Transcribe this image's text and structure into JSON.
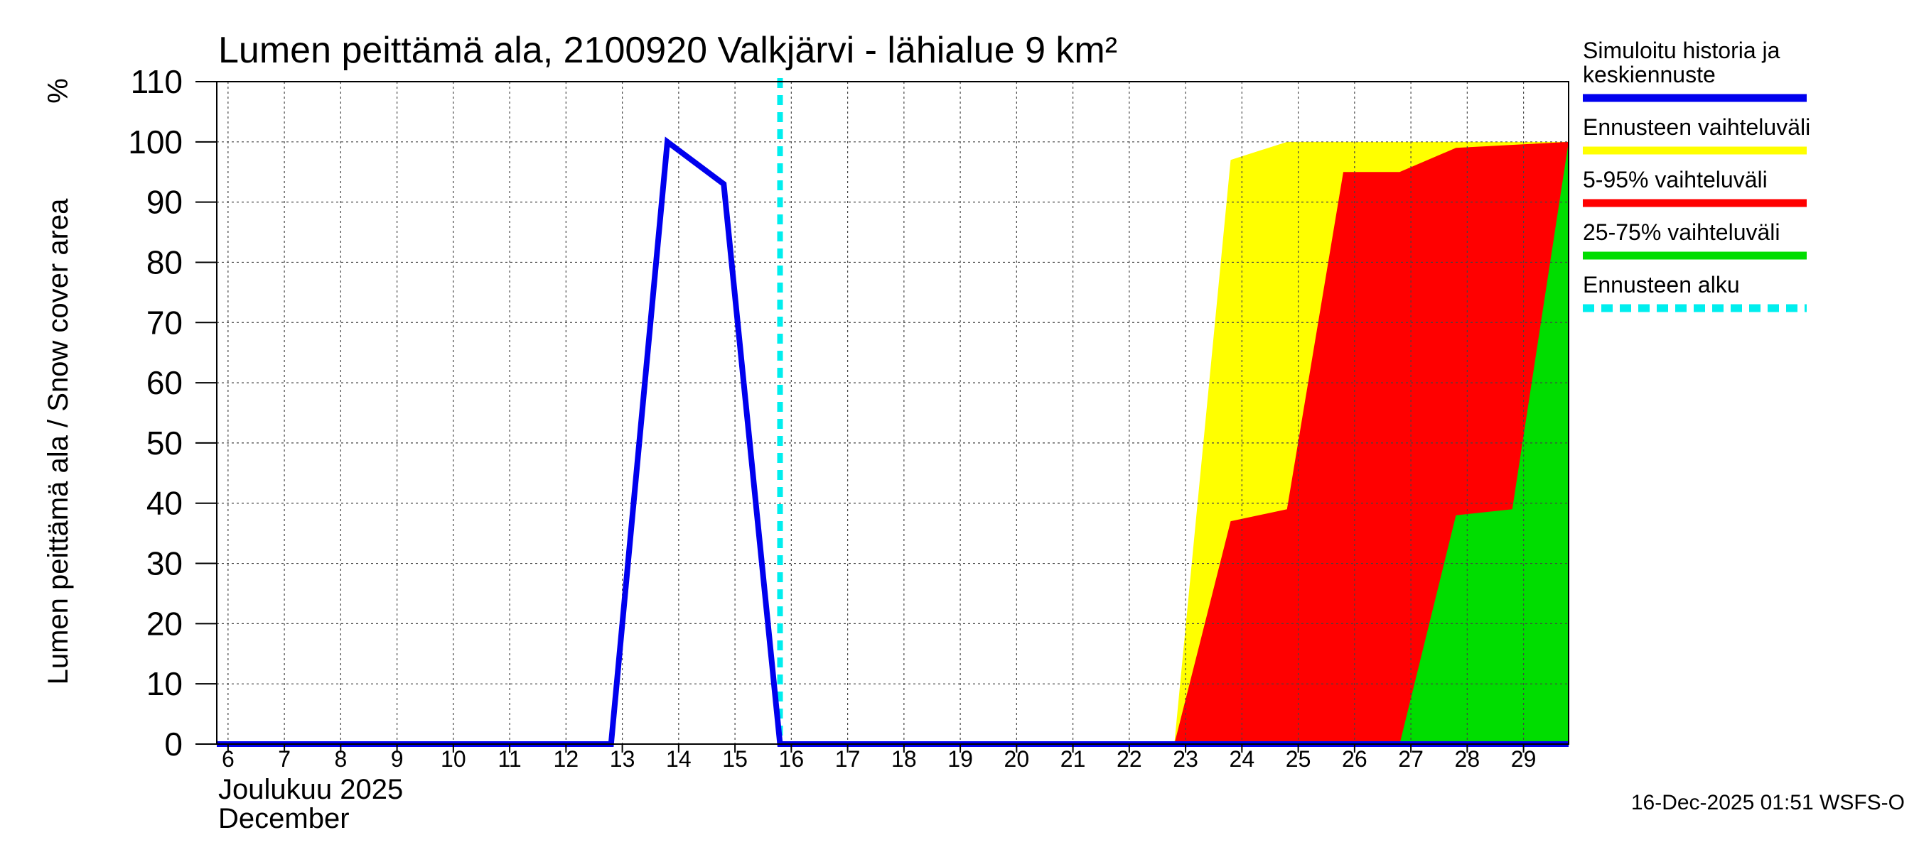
{
  "chart_data": {
    "type": "area",
    "title": "Lumen peittämä ala, 2100920 Valkjärvi - lähialue 9 km²",
    "ylabel": "Lumen peittämä ala / Snow cover area",
    "yunit": "%",
    "ylim": [
      0,
      110
    ],
    "yticks": [
      0,
      10,
      20,
      30,
      40,
      50,
      60,
      70,
      80,
      90,
      100,
      110
    ],
    "xlim": [
      5.8,
      29.8
    ],
    "xticks": [
      6,
      7,
      8,
      9,
      10,
      11,
      12,
      13,
      14,
      15,
      16,
      17,
      18,
      19,
      20,
      21,
      22,
      23,
      24,
      25,
      26,
      27,
      28,
      29
    ],
    "xtick_labels": [
      "6",
      "7",
      "8",
      "9",
      "10",
      "11",
      "12",
      "13",
      "14",
      "15",
      "16",
      "17",
      "18",
      "19",
      "20",
      "21",
      "22",
      "23",
      "24",
      "25",
      "26",
      "27",
      "28",
      "29"
    ],
    "x_month_label_fi": "Joulukuu  2025",
    "x_month_label_en": "December",
    "grid": true,
    "legend_position": "right",
    "forecast_start": 15.8,
    "series": [
      {
        "name": "Ennusteen vaihteluväli",
        "color": "#ffff00",
        "kind": "band",
        "points": [
          [
            15.8,
            0
          ],
          [
            22.8,
            0
          ],
          [
            23.8,
            97
          ],
          [
            24.8,
            100
          ],
          [
            29.8,
            100
          ]
        ]
      },
      {
        "name": "5-95% vaihteluväli",
        "color": "#ff0000",
        "kind": "band",
        "points": [
          [
            15.8,
            0
          ],
          [
            22.8,
            0
          ],
          [
            23.8,
            37
          ],
          [
            24.8,
            39
          ],
          [
            25.8,
            95
          ],
          [
            26.8,
            95
          ],
          [
            27.8,
            99
          ],
          [
            29.8,
            100
          ]
        ]
      },
      {
        "name": "25-75% vaihteluväli",
        "color": "#00dd00",
        "kind": "band",
        "points": [
          [
            15.8,
            0
          ],
          [
            26.8,
            0
          ],
          [
            27.8,
            38
          ],
          [
            28.8,
            39
          ],
          [
            29.8,
            100
          ]
        ]
      },
      {
        "name": "Simuloitu historia ja keskiennuste",
        "color": "#0000ee",
        "kind": "line",
        "points": [
          [
            5.8,
            0
          ],
          [
            12.8,
            0
          ],
          [
            13.8,
            100
          ],
          [
            14.8,
            93
          ],
          [
            15.8,
            0
          ],
          [
            29.8,
            0
          ]
        ]
      }
    ],
    "legend": [
      {
        "label_lines": [
          "Simuloitu historia ja",
          "keskiennuste"
        ],
        "color": "#0000ee",
        "style": "solid"
      },
      {
        "label_lines": [
          "Ennusteen vaihteluväli"
        ],
        "color": "#ffff00",
        "style": "solid"
      },
      {
        "label_lines": [
          "5-95% vaihteluväli"
        ],
        "color": "#ff0000",
        "style": "solid"
      },
      {
        "label_lines": [
          "25-75% vaihteluväli"
        ],
        "color": "#00dd00",
        "style": "solid"
      },
      {
        "label_lines": [
          "Ennusteen alku"
        ],
        "color": "#00eeee",
        "style": "dashed"
      }
    ],
    "forecast_line": {
      "color": "#00eeee"
    }
  },
  "footer": "16-Dec-2025 01:51 WSFS-O"
}
